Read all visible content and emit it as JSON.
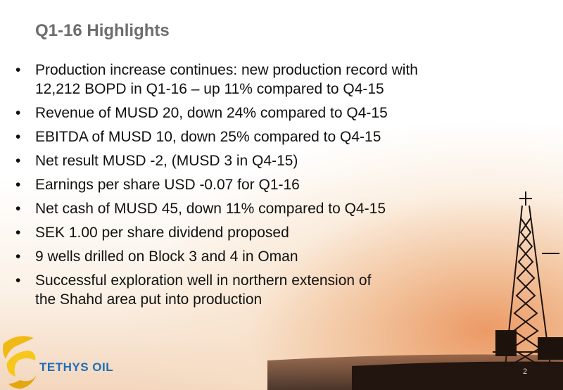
{
  "header": {
    "title": "Q1-16 Highlights"
  },
  "bullets": [
    {
      "lines": [
        "Production increase continues: new production record with",
        "12,212 BOPD in Q1-16 – up 11% compared to Q4-15"
      ]
    },
    {
      "lines": [
        "Revenue of MUSD 20, down 24% compared to Q4-15"
      ]
    },
    {
      "lines": [
        "EBITDA of MUSD 10, down 25% compared to Q4-15"
      ]
    },
    {
      "lines": [
        "Net result MUSD -2, (MUSD 3 in Q4-15)"
      ]
    },
    {
      "lines": [
        "Earnings per share USD -0.07 for Q1-16"
      ]
    },
    {
      "lines": [
        "Net cash of MUSD 45, down 11% compared to Q4-15"
      ]
    },
    {
      "lines": [
        "SEK 1.00 per share dividend proposed"
      ]
    },
    {
      "lines": [
        "9 wells drilled on Block 3 and 4 in Oman"
      ]
    },
    {
      "lines": [
        "Successful exploration well in northern extension of",
        "the Shahd area put into production"
      ]
    }
  ],
  "footer": {
    "logo": "TETHYS OIL",
    "page": "2"
  }
}
